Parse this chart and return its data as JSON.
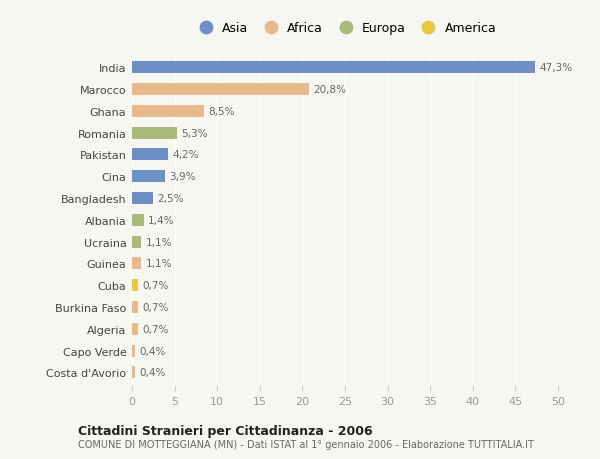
{
  "countries": [
    "India",
    "Marocco",
    "Ghana",
    "Romania",
    "Pakistan",
    "Cina",
    "Bangladesh",
    "Albania",
    "Ucraina",
    "Guinea",
    "Cuba",
    "Burkina Faso",
    "Algeria",
    "Capo Verde",
    "Costa d'Avorio"
  ],
  "values": [
    47.3,
    20.8,
    8.5,
    5.3,
    4.2,
    3.9,
    2.5,
    1.4,
    1.1,
    1.1,
    0.7,
    0.7,
    0.7,
    0.4,
    0.4
  ],
  "labels": [
    "47,3%",
    "20,8%",
    "8,5%",
    "5,3%",
    "4,2%",
    "3,9%",
    "2,5%",
    "1,4%",
    "1,1%",
    "1,1%",
    "0,7%",
    "0,7%",
    "0,7%",
    "0,4%",
    "0,4%"
  ],
  "continents": [
    "Asia",
    "Africa",
    "Africa",
    "Europa",
    "Asia",
    "Asia",
    "Asia",
    "Europa",
    "Europa",
    "Africa",
    "America",
    "Africa",
    "Africa",
    "Africa",
    "Africa"
  ],
  "colors": {
    "Asia": "#6f8fc7",
    "Africa": "#e8b98a",
    "Europa": "#aab87a",
    "America": "#e8c840"
  },
  "legend_order": [
    "Asia",
    "Africa",
    "Europa",
    "America"
  ],
  "xlim": [
    0,
    50
  ],
  "xticks": [
    0,
    5,
    10,
    15,
    20,
    25,
    30,
    35,
    40,
    45,
    50
  ],
  "title": "Cittadini Stranieri per Cittadinanza - 2006",
  "subtitle": "COMUNE DI MOTTEGGIANA (MN) - Dati ISTAT al 1° gennaio 2006 - Elaborazione TUTTITALIA.IT",
  "bg_color": "#f7f7f2",
  "bar_height": 0.55
}
